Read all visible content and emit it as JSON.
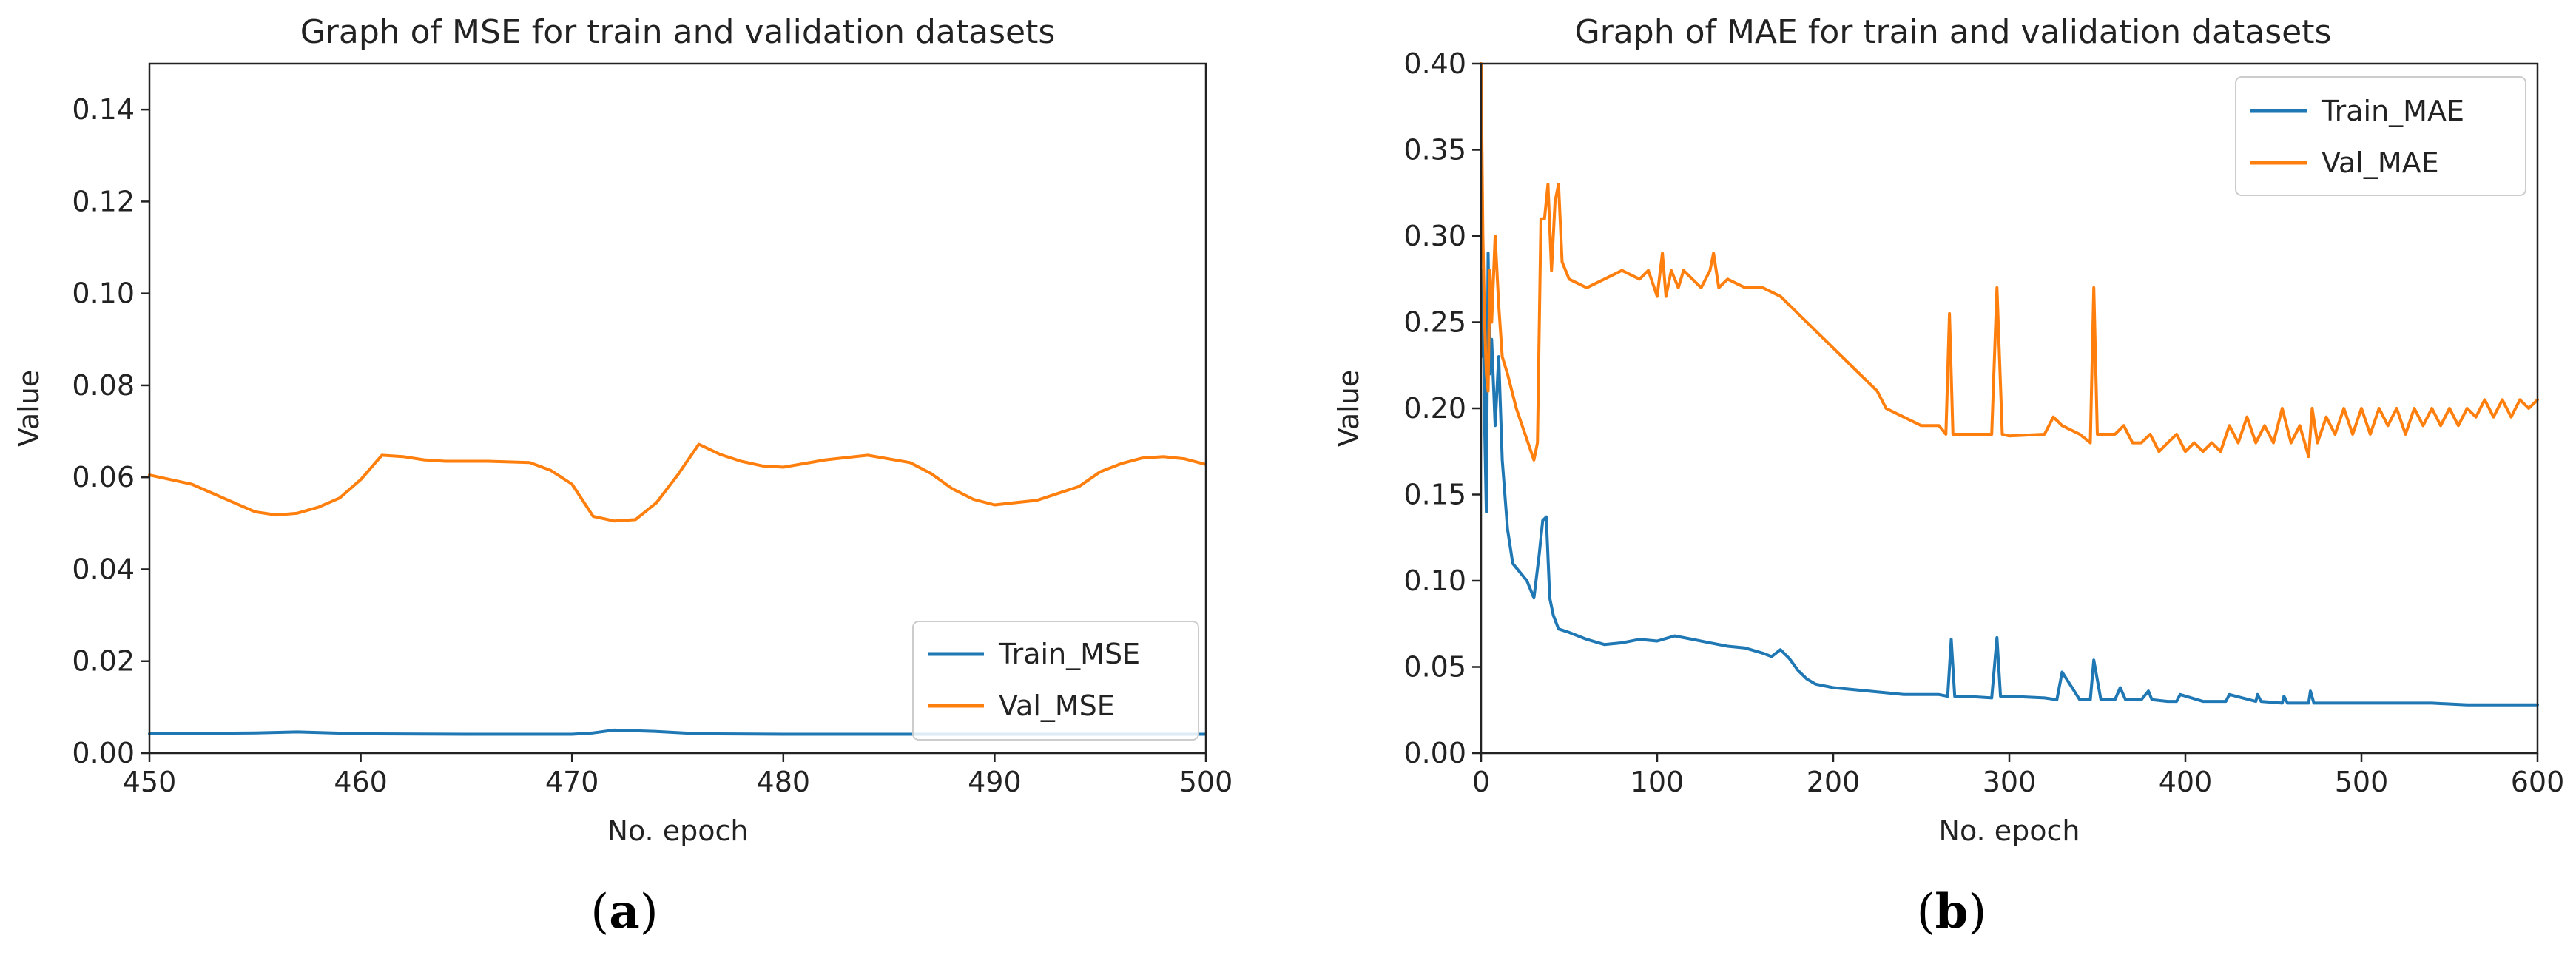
{
  "colors": {
    "train": "#1f77b4",
    "val": "#ff7f0e",
    "axis": "#222222",
    "legend_border": "#cccccc"
  },
  "chart_data": [
    {
      "type": "line",
      "caption_letter": "a",
      "title": "Graph of MSE for train and validation datasets",
      "xlabel": "No. epoch",
      "ylabel": "Value",
      "xlim": [
        450,
        500
      ],
      "ylim": [
        0,
        0.15
      ],
      "xticks": [
        450,
        460,
        470,
        480,
        490,
        500
      ],
      "xtick_labels": [
        "450",
        "460",
        "470",
        "480",
        "490",
        "500"
      ],
      "yticks": [
        0,
        0.02,
        0.04,
        0.06,
        0.08,
        0.1,
        0.12,
        0.14
      ],
      "ytick_labels": [
        "0.00",
        "0.02",
        "0.04",
        "0.06",
        "0.08",
        "0.10",
        "0.12",
        "0.14"
      ],
      "grid": false,
      "legend_loc": "lower-right",
      "series": [
        {
          "name": "Train_MSE",
          "color_key": "train",
          "x": [
            450,
            455,
            457,
            460,
            465,
            470,
            471,
            472,
            474,
            476,
            480,
            485,
            490,
            495,
            500
          ],
          "y": [
            0.0042,
            0.0044,
            0.0046,
            0.0042,
            0.0041,
            0.0041,
            0.0044,
            0.005,
            0.0047,
            0.0042,
            0.0041,
            0.0041,
            0.0041,
            0.0041,
            0.0041
          ]
        },
        {
          "name": "Val_MSE",
          "color_key": "val",
          "x": [
            450,
            452,
            454,
            455,
            456,
            457,
            458,
            459,
            460,
            461,
            462,
            463,
            464,
            466,
            468,
            469,
            470,
            471,
            472,
            473,
            474,
            475,
            476,
            477,
            478,
            479,
            480,
            482,
            484,
            486,
            487,
            488,
            489,
            490,
            492,
            494,
            495,
            496,
            497,
            498,
            499,
            500
          ],
          "y": [
            0.0605,
            0.0585,
            0.0545,
            0.0525,
            0.0518,
            0.0522,
            0.0535,
            0.0555,
            0.0595,
            0.0648,
            0.0645,
            0.0638,
            0.0635,
            0.0635,
            0.0632,
            0.0615,
            0.0585,
            0.0515,
            0.0505,
            0.0508,
            0.0545,
            0.0605,
            0.0672,
            0.065,
            0.0635,
            0.0625,
            0.0622,
            0.0638,
            0.0648,
            0.0632,
            0.0608,
            0.0575,
            0.0552,
            0.054,
            0.055,
            0.058,
            0.0612,
            0.063,
            0.0642,
            0.0645,
            0.064,
            0.0628
          ]
        }
      ]
    },
    {
      "type": "line",
      "caption_letter": "b",
      "title": "Graph of MAE for train and validation datasets",
      "xlabel": "No. epoch",
      "ylabel": "Value",
      "xlim": [
        0,
        600
      ],
      "ylim": [
        0,
        0.4
      ],
      "xticks": [
        0,
        100,
        200,
        300,
        400,
        500,
        600
      ],
      "xtick_labels": [
        "0",
        "100",
        "200",
        "300",
        "400",
        "500",
        "600"
      ],
      "yticks": [
        0,
        0.05,
        0.1,
        0.15,
        0.2,
        0.25,
        0.3,
        0.35,
        0.4
      ],
      "ytick_labels": [
        "0.00",
        "0.05",
        "0.10",
        "0.15",
        "0.20",
        "0.25",
        "0.30",
        "0.35",
        "0.40"
      ],
      "grid": false,
      "legend_loc": "top-right",
      "series": [
        {
          "name": "Train_MAE",
          "color_key": "train",
          "x": [
            0,
            1,
            2,
            3,
            4,
            5,
            6,
            8,
            10,
            12,
            15,
            18,
            22,
            26,
            30,
            33,
            35,
            37,
            39,
            41,
            44,
            50,
            60,
            70,
            80,
            90,
            100,
            110,
            120,
            130,
            140,
            150,
            160,
            165,
            170,
            175,
            180,
            185,
            190,
            200,
            220,
            240,
            260,
            265,
            267,
            269,
            275,
            290,
            293,
            295,
            300,
            320,
            327,
            330,
            340,
            346,
            348,
            352,
            360,
            363,
            366,
            375,
            379,
            381,
            390,
            395,
            397,
            410,
            423,
            425,
            440,
            441,
            443,
            455,
            456,
            458,
            470,
            471,
            473,
            480,
            500,
            520,
            540,
            560,
            580,
            600
          ],
          "y": [
            0.23,
            0.28,
            0.19,
            0.14,
            0.29,
            0.22,
            0.24,
            0.19,
            0.23,
            0.17,
            0.13,
            0.11,
            0.105,
            0.1,
            0.09,
            0.115,
            0.135,
            0.137,
            0.09,
            0.08,
            0.072,
            0.07,
            0.066,
            0.063,
            0.064,
            0.066,
            0.065,
            0.068,
            0.066,
            0.064,
            0.062,
            0.061,
            0.058,
            0.056,
            0.06,
            0.055,
            0.048,
            0.043,
            0.04,
            0.038,
            0.036,
            0.034,
            0.034,
            0.033,
            0.066,
            0.033,
            0.033,
            0.032,
            0.067,
            0.033,
            0.033,
            0.032,
            0.031,
            0.047,
            0.031,
            0.031,
            0.054,
            0.031,
            0.031,
            0.038,
            0.031,
            0.031,
            0.036,
            0.031,
            0.03,
            0.03,
            0.034,
            0.03,
            0.03,
            0.034,
            0.03,
            0.034,
            0.03,
            0.029,
            0.033,
            0.029,
            0.029,
            0.036,
            0.029,
            0.029,
            0.029,
            0.029,
            0.029,
            0.028,
            0.028,
            0.028
          ]
        },
        {
          "name": "Val_MAE",
          "color_key": "val",
          "x": [
            0,
            1,
            2,
            3,
            4,
            5,
            6,
            8,
            10,
            12,
            15,
            20,
            25,
            30,
            32,
            34,
            36,
            38,
            40,
            42,
            44,
            46,
            50,
            60,
            70,
            80,
            90,
            95,
            100,
            103,
            105,
            108,
            112,
            115,
            120,
            125,
            130,
            132,
            135,
            140,
            150,
            160,
            170,
            180,
            190,
            200,
            210,
            220,
            225,
            230,
            240,
            250,
            260,
            264,
            266,
            268,
            270,
            280,
            290,
            293,
            296,
            300,
            320,
            325,
            330,
            340,
            346,
            348,
            350,
            360,
            365,
            370,
            375,
            380,
            385,
            390,
            395,
            400,
            405,
            410,
            415,
            420,
            425,
            430,
            435,
            440,
            445,
            450,
            455,
            460,
            465,
            470,
            472,
            475,
            480,
            485,
            490,
            495,
            500,
            505,
            510,
            515,
            520,
            525,
            530,
            535,
            540,
            545,
            550,
            555,
            560,
            565,
            570,
            575,
            580,
            585,
            590,
            595,
            600
          ],
          "y": [
            0.4,
            0.3,
            0.25,
            0.22,
            0.21,
            0.28,
            0.25,
            0.3,
            0.26,
            0.23,
            0.22,
            0.2,
            0.185,
            0.17,
            0.18,
            0.31,
            0.31,
            0.33,
            0.28,
            0.32,
            0.33,
            0.285,
            0.275,
            0.27,
            0.275,
            0.28,
            0.275,
            0.28,
            0.265,
            0.29,
            0.265,
            0.28,
            0.27,
            0.28,
            0.275,
            0.27,
            0.28,
            0.29,
            0.27,
            0.275,
            0.27,
            0.27,
            0.265,
            0.255,
            0.245,
            0.235,
            0.225,
            0.215,
            0.21,
            0.2,
            0.195,
            0.19,
            0.19,
            0.185,
            0.255,
            0.185,
            0.185,
            0.185,
            0.185,
            0.27,
            0.185,
            0.184,
            0.185,
            0.195,
            0.19,
            0.185,
            0.18,
            0.27,
            0.185,
            0.185,
            0.19,
            0.18,
            0.18,
            0.185,
            0.175,
            0.18,
            0.185,
            0.175,
            0.18,
            0.175,
            0.18,
            0.175,
            0.19,
            0.18,
            0.195,
            0.18,
            0.19,
            0.18,
            0.2,
            0.18,
            0.19,
            0.172,
            0.2,
            0.18,
            0.195,
            0.185,
            0.2,
            0.185,
            0.2,
            0.185,
            0.2,
            0.19,
            0.2,
            0.185,
            0.2,
            0.19,
            0.2,
            0.19,
            0.2,
            0.19,
            0.2,
            0.195,
            0.205,
            0.195,
            0.205,
            0.195,
            0.205,
            0.2,
            0.205
          ]
        }
      ]
    }
  ]
}
